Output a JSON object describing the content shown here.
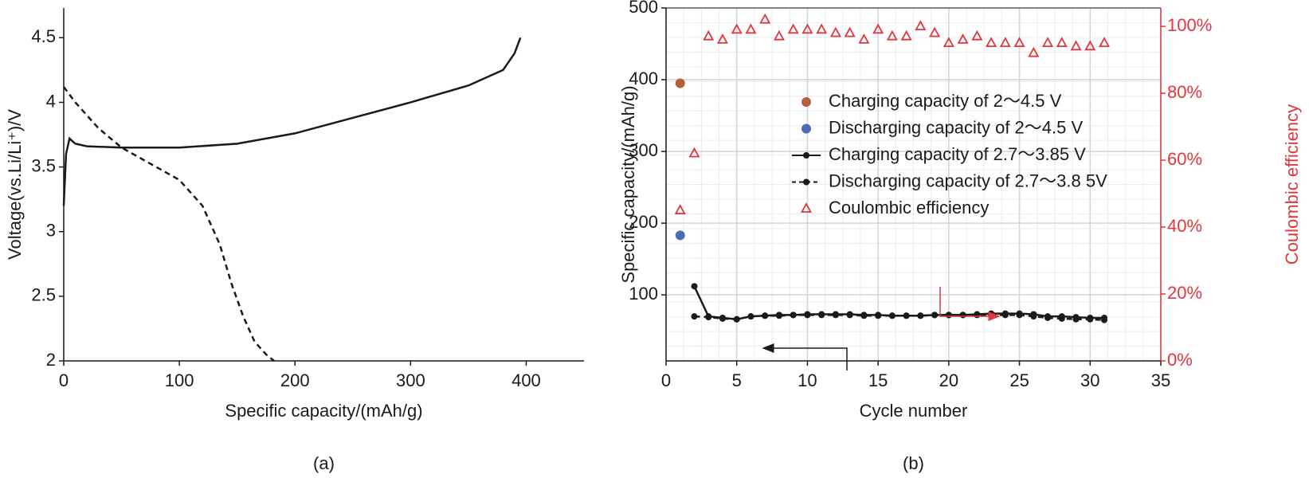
{
  "chart_data": [
    {
      "type": "line",
      "caption": "(a)",
      "xlabel": "Specific capacity/(mAh/g)",
      "ylabel": "Voltage(vs.Li/Li⁺)/V",
      "xlim": [
        0,
        450
      ],
      "xticks": [
        0,
        100,
        200,
        300,
        400
      ],
      "ylim": [
        2,
        4.73
      ],
      "yticks": [
        2,
        2.5,
        3,
        3.5,
        4,
        4.5
      ],
      "grid": false,
      "series": [
        {
          "color": "#1a1a1a",
          "line_style": "solid",
          "x": [
            0,
            2,
            5,
            10,
            20,
            50,
            100,
            150,
            200,
            250,
            300,
            350,
            380,
            390,
            395
          ],
          "values": [
            3.2,
            3.6,
            3.72,
            3.68,
            3.66,
            3.65,
            3.65,
            3.68,
            3.76,
            3.88,
            4.0,
            4.13,
            4.25,
            4.38,
            4.5
          ]
        },
        {
          "color": "#1a1a1a",
          "line_style": "dashed",
          "x": [
            0,
            10,
            30,
            50,
            80,
            100,
            120,
            135,
            145,
            155,
            165,
            175,
            182
          ],
          "values": [
            4.12,
            4.0,
            3.8,
            3.65,
            3.5,
            3.4,
            3.2,
            2.9,
            2.6,
            2.35,
            2.15,
            2.05,
            2.0
          ]
        }
      ]
    },
    {
      "type": "line",
      "caption": "(b)",
      "xlabel": "Cycle number",
      "ylabel": "Specific capacity/(mAh/g)",
      "y2label": "Coulombic efficiency",
      "xlim": [
        0,
        35
      ],
      "xticks": [
        0,
        5,
        10,
        15,
        20,
        25,
        30,
        35
      ],
      "ylim": [
        8,
        500
      ],
      "yticks": [
        100,
        200,
        300,
        400,
        500
      ],
      "y2lim": [
        0,
        105.5
      ],
      "y2ticks": [
        {
          "value": 0,
          "label": "0%"
        },
        {
          "value": 20,
          "label": "20%"
        },
        {
          "value": 40,
          "label": "40%"
        },
        {
          "value": 60,
          "label": "60%"
        },
        {
          "value": 80,
          "label": "80%"
        },
        {
          "value": 100,
          "label": "100%"
        }
      ],
      "y2_color": "#e0363c",
      "grid": true,
      "legend": "center",
      "series": [
        {
          "name": "Charging capacity of 2～4.5 V",
          "color": "#b5603a",
          "marker": "circle",
          "line_style": "none",
          "x": [
            1
          ],
          "values": [
            395
          ]
        },
        {
          "name": "Discharging capacity of 2～4.5 V",
          "color": "#4a6db5",
          "marker": "circle",
          "line_style": "none",
          "x": [
            1
          ],
          "values": [
            183
          ]
        },
        {
          "name": "Charging capacity of 2.7～3.85 V",
          "color": "#1a1a1a",
          "marker": "dot",
          "line_style": "solid",
          "x": [
            2,
            3,
            4,
            5,
            6,
            7,
            8,
            9,
            10,
            11,
            12,
            13,
            14,
            15,
            16,
            17,
            18,
            19,
            20,
            21,
            22,
            23,
            24,
            25,
            26,
            27,
            28,
            29,
            30,
            31
          ],
          "values": [
            112,
            70,
            68,
            66,
            70,
            71,
            72,
            72,
            73,
            73,
            73,
            73,
            72,
            72,
            71,
            71,
            71,
            72,
            72,
            72,
            73,
            74,
            74,
            74,
            73,
            70,
            70,
            69,
            68,
            68
          ]
        },
        {
          "name": "Discharging capacity of 2.7～3.8 5V",
          "color": "#1a1a1a",
          "marker": "dot",
          "line_style": "dashed",
          "x": [
            2,
            3,
            4,
            5,
            6,
            7,
            8,
            9,
            10,
            11,
            12,
            13,
            14,
            15,
            16,
            17,
            18,
            19,
            20,
            21,
            22,
            23,
            24,
            25,
            26,
            27,
            28,
            29,
            30,
            31
          ],
          "values": [
            70,
            69,
            67,
            66,
            70,
            71,
            71,
            72,
            72,
            72,
            72,
            72,
            71,
            71,
            71,
            71,
            71,
            72,
            72,
            72,
            72,
            72,
            72,
            72,
            70,
            68,
            67,
            66,
            66,
            65
          ]
        },
        {
          "name": "Coulombic efficiency",
          "color": "#e0363c",
          "marker": "triangle",
          "line_style": "none",
          "axis": "y2",
          "x": [
            1,
            2,
            3,
            4,
            5,
            6,
            7,
            8,
            9,
            10,
            11,
            12,
            13,
            14,
            15,
            16,
            17,
            18,
            19,
            20,
            21,
            22,
            23,
            24,
            25,
            26,
            27,
            28,
            29,
            30,
            31
          ],
          "values": [
            45,
            62,
            97,
            96,
            99,
            99,
            102,
            97,
            99,
            99,
            99,
            98,
            98,
            96,
            99,
            97,
            97,
            100,
            98,
            95,
            96,
            97,
            95,
            95,
            95,
            92,
            95,
            95,
            94,
            94,
            95
          ]
        }
      ]
    }
  ]
}
